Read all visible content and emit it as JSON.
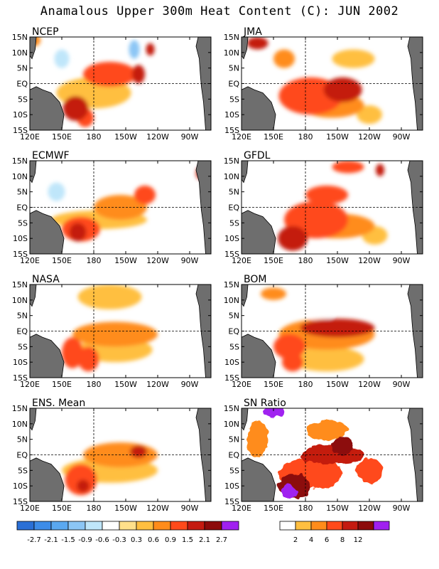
{
  "title": "Anamalous Upper 300m Heat Content (C): JUN 2002",
  "chart_data": {
    "type": "heatmap",
    "title": "Anamalous Upper 300m Heat Content (C): JUN 2002",
    "x_ticks": [
      "120E",
      "150E",
      "180",
      "150W",
      "120W",
      "90W"
    ],
    "x_tick_values": [
      120,
      150,
      180,
      210,
      240,
      270
    ],
    "y_ticks": [
      "15N",
      "10N",
      "5N",
      "EQ",
      "5S",
      "10S",
      "15S"
    ],
    "y_tick_values": [
      15,
      10,
      5,
      0,
      -5,
      -10,
      -15
    ],
    "xlim": [
      120,
      290
    ],
    "ylim": [
      -15,
      15
    ],
    "grid": "dashed lines at EQ and 180",
    "colors": {
      "land": "#6e6e6e",
      "anomaly_scale": [
        "#2a6fd6",
        "#3d8ce8",
        "#5aa8f0",
        "#8cc6f5",
        "#bfe6fa",
        "#ffffff",
        "#ffe08a",
        "#ffbf40",
        "#ff8c1a",
        "#ff4a1a",
        "#c41a10",
        "#8c0a0a",
        "#a020f0"
      ],
      "sn_scale": [
        "#ffffff",
        "#ffbf40",
        "#ff8c1a",
        "#ff4a1a",
        "#c41a10",
        "#8c0a0a",
        "#a020f0"
      ]
    },
    "legend_anomaly": [
      "-2.7",
      "-2.1",
      "-1.5",
      "-0.9",
      "-0.6",
      "-0.3",
      "0.3",
      "0.6",
      "0.9",
      "1.5",
      "2.1",
      "2.7"
    ],
    "legend_sn": [
      "2",
      "4",
      "6",
      "8",
      "12"
    ],
    "panels": [
      {
        "name": "NCEP",
        "blobs": [
          {
            "lon": 163,
            "lat": -8,
            "rx": 12,
            "ry": 4,
            "v": 1.6
          },
          {
            "lon": 172,
            "lat": -11,
            "rx": 8,
            "ry": 3,
            "v": 1.4
          },
          {
            "lon": 195,
            "lat": 3,
            "rx": 25,
            "ry": 4,
            "v": 0.9
          },
          {
            "lon": 222,
            "lat": 3,
            "rx": 6,
            "ry": 3,
            "v": 1.6
          },
          {
            "lon": 180,
            "lat": -3,
            "rx": 35,
            "ry": 5,
            "v": 0.5
          },
          {
            "lon": 150,
            "lat": 8,
            "rx": 7,
            "ry": 3,
            "v": -0.9
          },
          {
            "lon": 218,
            "lat": 11,
            "rx": 5,
            "ry": 3,
            "v": -1.5
          },
          {
            "lon": 233,
            "lat": 11,
            "rx": 4,
            "ry": 2,
            "v": 1.5
          },
          {
            "lon": 258,
            "lat": 6,
            "rx": 8,
            "ry": 3,
            "v": -0.5
          },
          {
            "lon": 270,
            "lat": -3,
            "rx": 5,
            "ry": 5,
            "v": -0.5
          },
          {
            "lon": 125,
            "lat": 14,
            "rx": 5,
            "ry": 2,
            "v": 0.6
          }
        ]
      },
      {
        "name": "JMA",
        "blobs": [
          {
            "lon": 185,
            "lat": -4,
            "rx": 30,
            "ry": 6,
            "v": 0.9
          },
          {
            "lon": 215,
            "lat": -2,
            "rx": 18,
            "ry": 4,
            "v": 1.5
          },
          {
            "lon": 205,
            "lat": -7,
            "rx": 30,
            "ry": 4,
            "v": 0.6
          },
          {
            "lon": 240,
            "lat": -10,
            "rx": 12,
            "ry": 3,
            "v": 0.5
          },
          {
            "lon": 135,
            "lat": 13,
            "rx": 10,
            "ry": 2,
            "v": 1.5
          },
          {
            "lon": 160,
            "lat": 8,
            "rx": 10,
            "ry": 3,
            "v": 0.6
          },
          {
            "lon": 225,
            "lat": 8,
            "rx": 20,
            "ry": 3,
            "v": 0.4
          },
          {
            "lon": 278,
            "lat": 8,
            "rx": 6,
            "ry": 3,
            "v": -0.5
          }
        ]
      },
      {
        "name": "ECMWF",
        "blobs": [
          {
            "lon": 168,
            "lat": -7,
            "rx": 18,
            "ry": 4,
            "v": 1.0
          },
          {
            "lon": 165,
            "lat": -8,
            "rx": 8,
            "ry": 3,
            "v": 1.6
          },
          {
            "lon": 205,
            "lat": 0,
            "rx": 25,
            "ry": 4,
            "v": 0.6
          },
          {
            "lon": 228,
            "lat": 4,
            "rx": 10,
            "ry": 3,
            "v": 0.9
          },
          {
            "lon": 185,
            "lat": -4,
            "rx": 45,
            "ry": 3,
            "v": 0.4
          },
          {
            "lon": 145,
            "lat": 5,
            "rx": 8,
            "ry": 3,
            "v": -0.7
          },
          {
            "lon": 200,
            "lat": 10,
            "rx": 15,
            "ry": 3,
            "v": -0.4
          },
          {
            "lon": 250,
            "lat": -8,
            "rx": 6,
            "ry": 3,
            "v": -0.4
          },
          {
            "lon": 280,
            "lat": 11,
            "rx": 4,
            "ry": 2,
            "v": 1.6
          }
        ]
      },
      {
        "name": "GFDL",
        "blobs": [
          {
            "lon": 168,
            "lat": -10,
            "rx": 14,
            "ry": 4,
            "v": 1.6
          },
          {
            "lon": 190,
            "lat": -4,
            "rx": 30,
            "ry": 6,
            "v": 0.9
          },
          {
            "lon": 210,
            "lat": -6,
            "rx": 35,
            "ry": 4,
            "v": 0.6
          },
          {
            "lon": 200,
            "lat": 4,
            "rx": 20,
            "ry": 3,
            "v": 0.9
          },
          {
            "lon": 245,
            "lat": -9,
            "rx": 12,
            "ry": 3,
            "v": 0.5
          },
          {
            "lon": 220,
            "lat": 13,
            "rx": 15,
            "ry": 2,
            "v": 0.9
          },
          {
            "lon": 250,
            "lat": 12,
            "rx": 4,
            "ry": 2,
            "v": 1.5
          },
          {
            "lon": 140,
            "lat": 10,
            "rx": 8,
            "ry": 3,
            "v": -0.4
          }
        ]
      },
      {
        "name": "NASA",
        "blobs": [
          {
            "lon": 160,
            "lat": -7,
            "rx": 10,
            "ry": 5,
            "v": 0.9
          },
          {
            "lon": 175,
            "lat": -9,
            "rx": 10,
            "ry": 4,
            "v": 0.9
          },
          {
            "lon": 200,
            "lat": -1,
            "rx": 40,
            "ry": 4,
            "v": 0.6
          },
          {
            "lon": 200,
            "lat": -6,
            "rx": 35,
            "ry": 4,
            "v": 0.4
          },
          {
            "lon": 140,
            "lat": 5,
            "rx": 12,
            "ry": 3,
            "v": -0.6
          },
          {
            "lon": 195,
            "lat": 11,
            "rx": 30,
            "ry": 4,
            "v": 0.4
          },
          {
            "lon": 250,
            "lat": 10,
            "rx": 10,
            "ry": 3,
            "v": -0.4
          },
          {
            "lon": 262,
            "lat": 3,
            "rx": 8,
            "ry": 4,
            "v": -0.4
          }
        ]
      },
      {
        "name": "BOM",
        "blobs": [
          {
            "lon": 210,
            "lat": 1,
            "rx": 35,
            "ry": 3,
            "v": 1.6
          },
          {
            "lon": 200,
            "lat": -1,
            "rx": 45,
            "ry": 5,
            "v": 0.7
          },
          {
            "lon": 165,
            "lat": -5,
            "rx": 15,
            "ry": 4,
            "v": 0.9
          },
          {
            "lon": 168,
            "lat": -10,
            "rx": 10,
            "ry": 3,
            "v": 0.9
          },
          {
            "lon": 200,
            "lat": -9,
            "rx": 35,
            "ry": 4,
            "v": 0.4
          },
          {
            "lon": 150,
            "lat": 12,
            "rx": 12,
            "ry": 2,
            "v": 0.6
          },
          {
            "lon": 230,
            "lat": 10,
            "rx": 25,
            "ry": 3,
            "v": -0.4
          },
          {
            "lon": 195,
            "lat": 5,
            "rx": 10,
            "ry": 2,
            "v": -0.6
          }
        ]
      },
      {
        "name": "ENS. Mean",
        "blobs": [
          {
            "lon": 168,
            "lat": -8,
            "rx": 15,
            "ry": 5,
            "v": 0.9
          },
          {
            "lon": 170,
            "lat": -10,
            "rx": 6,
            "ry": 2,
            "v": 1.5
          },
          {
            "lon": 205,
            "lat": 0,
            "rx": 35,
            "ry": 4,
            "v": 0.8
          },
          {
            "lon": 222,
            "lat": 1,
            "rx": 8,
            "ry": 2,
            "v": 1.5
          },
          {
            "lon": 195,
            "lat": -5,
            "rx": 45,
            "ry": 4,
            "v": 0.4
          },
          {
            "lon": 145,
            "lat": 5,
            "rx": 10,
            "ry": 3,
            "v": -0.5
          },
          {
            "lon": 230,
            "lat": 12,
            "rx": 10,
            "ry": 3,
            "v": -0.4
          },
          {
            "lon": 170,
            "lat": 12,
            "rx": 8,
            "ry": 2,
            "v": -0.4
          }
        ]
      },
      {
        "name": "SN Ratio",
        "blobs": [
          {
            "lon": 205,
            "lat": 0,
            "rx": 30,
            "ry": 3,
            "v": 6
          },
          {
            "lon": 185,
            "lat": -6,
            "rx": 30,
            "ry": 5,
            "v": 4
          },
          {
            "lon": 170,
            "lat": -10,
            "rx": 15,
            "ry": 4,
            "v": 8
          },
          {
            "lon": 165,
            "lat": -12,
            "rx": 8,
            "ry": 2,
            "v": 12
          },
          {
            "lon": 215,
            "lat": 3,
            "rx": 10,
            "ry": 3,
            "v": 8
          },
          {
            "lon": 240,
            "lat": -5,
            "rx": 12,
            "ry": 4,
            "v": 4
          },
          {
            "lon": 150,
            "lat": 14,
            "rx": 10,
            "ry": 2,
            "v": 12
          },
          {
            "lon": 135,
            "lat": 5,
            "rx": 10,
            "ry": 6,
            "v": 2
          },
          {
            "lon": 200,
            "lat": 8,
            "rx": 20,
            "ry": 3,
            "v": 2
          }
        ]
      }
    ]
  }
}
